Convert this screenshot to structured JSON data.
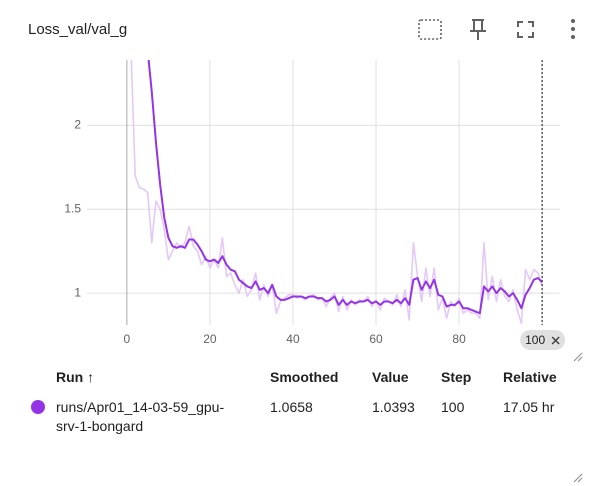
{
  "card": {
    "title": "Loss_val/val_g"
  },
  "chart_data": {
    "type": "line",
    "x": [
      1,
      2,
      3,
      4,
      5,
      6,
      7,
      8,
      9,
      10,
      11,
      12,
      13,
      14,
      15,
      16,
      17,
      18,
      19,
      20,
      21,
      22,
      23,
      24,
      25,
      26,
      27,
      28,
      29,
      30,
      31,
      32,
      33,
      34,
      35,
      36,
      37,
      38,
      39,
      40,
      41,
      42,
      43,
      44,
      45,
      46,
      47,
      48,
      49,
      50,
      51,
      52,
      53,
      54,
      55,
      56,
      57,
      58,
      59,
      60,
      61,
      62,
      63,
      64,
      65,
      66,
      67,
      68,
      69,
      70,
      71,
      72,
      73,
      74,
      75,
      76,
      77,
      78,
      79,
      80,
      81,
      82,
      83,
      84,
      85,
      86,
      87,
      88,
      89,
      90,
      91,
      92,
      93,
      94,
      95,
      96,
      97,
      98,
      99,
      100
    ],
    "series": [
      {
        "color": "#e3c9f7",
        "values": [
          2.45,
          1.7,
          1.63,
          1.62,
          1.6,
          1.3,
          1.55,
          1.5,
          1.38,
          1.2,
          1.25,
          1.3,
          1.27,
          1.3,
          1.4,
          1.28,
          1.25,
          1.17,
          1.22,
          1.15,
          1.2,
          1.15,
          1.33,
          1.1,
          1.12,
          1.05,
          1.0,
          1.08,
          0.98,
          1.02,
          1.12,
          0.96,
          1.05,
          0.98,
          1.05,
          0.88,
          0.95,
          0.97,
          0.99,
          0.99,
          0.97,
          0.98,
          0.96,
          0.98,
          0.99,
          0.96,
          0.97,
          0.92,
          0.97,
          1.0,
          0.89,
          0.98,
          0.9,
          0.96,
          0.93,
          0.96,
          0.95,
          0.98,
          0.92,
          0.96,
          0.9,
          0.97,
          0.95,
          0.93,
          0.99,
          0.92,
          1.02,
          0.84,
          1.3,
          1.1,
          0.95,
          1.15,
          0.98,
          1.15,
          0.9,
          0.97,
          0.85,
          0.95,
          0.92,
          0.97,
          0.88,
          0.9,
          0.88,
          0.88,
          0.85,
          1.3,
          0.96,
          1.1,
          0.95,
          1.08,
          0.98,
          0.95,
          1.02,
          0.9,
          0.82,
          1.14,
          1.08,
          1.14,
          1.12,
          1.0393
        ]
      },
      {
        "color": "#9334e6",
        "values": [
          null,
          null,
          null,
          null,
          2.45,
          2.2,
          1.9,
          1.65,
          1.45,
          1.33,
          1.28,
          1.27,
          1.28,
          1.27,
          1.32,
          1.32,
          1.29,
          1.25,
          1.2,
          1.19,
          1.2,
          1.18,
          1.22,
          1.17,
          1.14,
          1.13,
          1.08,
          1.06,
          1.04,
          1.03,
          1.07,
          1.02,
          1.03,
          1.0,
          1.05,
          0.98,
          0.96,
          0.96,
          0.97,
          0.98,
          0.98,
          0.98,
          0.97,
          0.98,
          0.98,
          0.97,
          0.97,
          0.95,
          0.96,
          0.98,
          0.93,
          0.96,
          0.93,
          0.95,
          0.94,
          0.95,
          0.95,
          0.96,
          0.94,
          0.95,
          0.93,
          0.95,
          0.95,
          0.94,
          0.96,
          0.94,
          0.97,
          0.93,
          1.08,
          1.09,
          1.02,
          1.07,
          1.03,
          1.08,
          0.99,
          0.98,
          0.92,
          0.93,
          0.93,
          0.95,
          0.91,
          0.91,
          0.9,
          0.89,
          0.88,
          1.04,
          1.01,
          1.04,
          1.0,
          1.03,
          1.01,
          0.98,
          1.0,
          0.96,
          0.91,
          0.99,
          1.03,
          1.08,
          1.09,
          1.0658
        ]
      }
    ],
    "xlim": [
      -9.6,
      104.3
    ],
    "ylim": [
      0.81,
      2.39
    ],
    "xticks": [
      0,
      20,
      40,
      60,
      80,
      100
    ],
    "yticks": [
      1,
      1.5,
      2
    ],
    "grid": true,
    "hover_step": 100
  },
  "table": {
    "headers": [
      "Run ↑",
      "Smoothed",
      "Value",
      "Step",
      "Relative"
    ],
    "rows": [
      [
        "runs/Apr01_14-03-59_gpu-srv-1-bongard",
        "1.0658",
        "1.0393",
        "100",
        "17.05 hr"
      ]
    ],
    "run_color": "#9334e6"
  }
}
